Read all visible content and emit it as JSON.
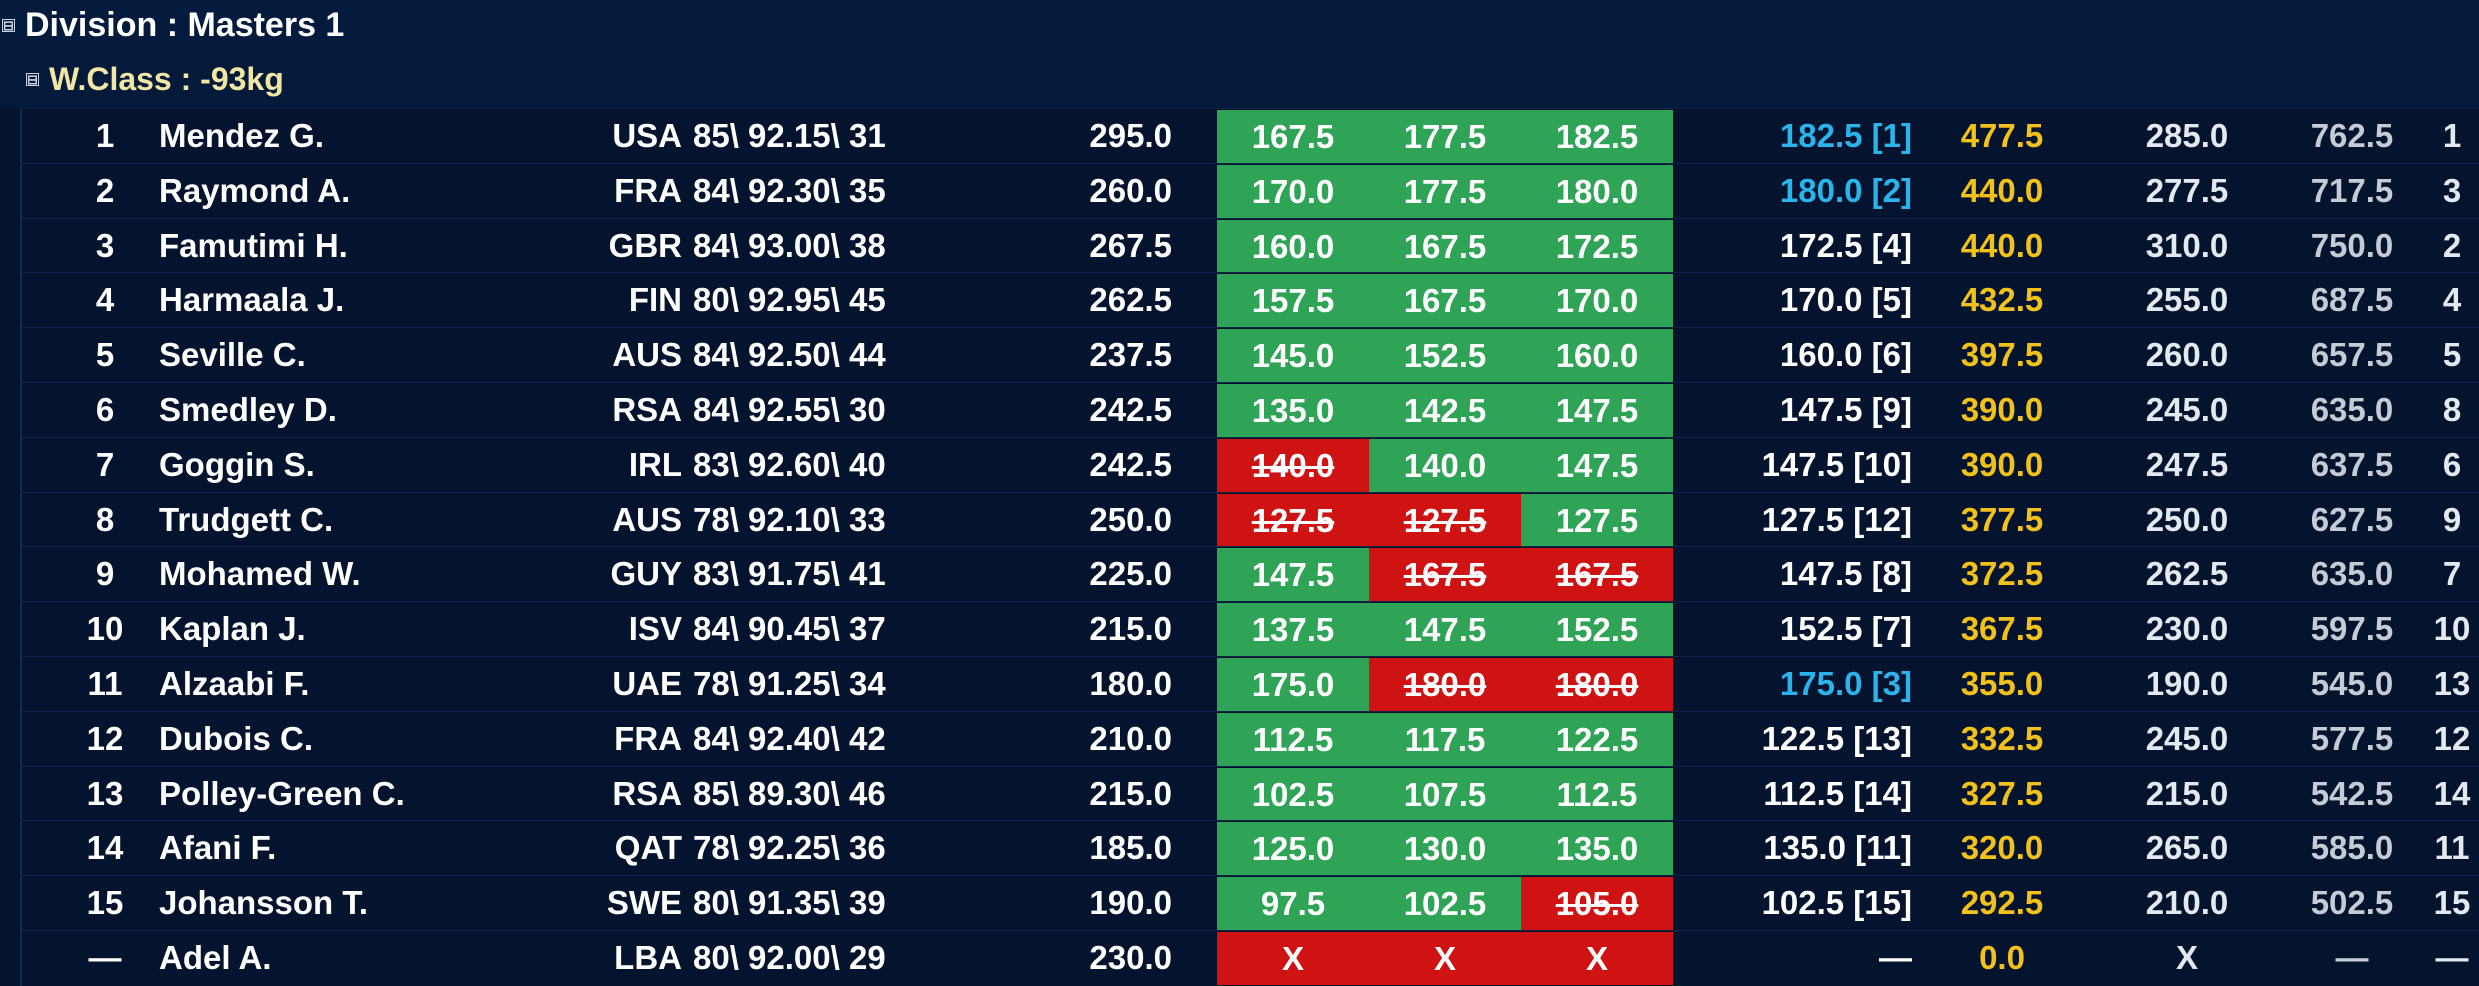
{
  "division": {
    "label": "Division : Masters 1",
    "expander": "⊟"
  },
  "weight_class": {
    "label": "W.Class : -93kg",
    "expander": "⊟"
  },
  "colors": {
    "good": "#2fa356",
    "bad": "#cf1212",
    "total": "#f2c21b",
    "record": "#2bb3ec"
  },
  "rows": [
    {
      "rank": "1",
      "name": "Mendez G.",
      "country": "USA",
      "bw": "85\\ 92.15\\ 31",
      "open": "295.0",
      "attempts": [
        {
          "v": "167.5",
          "s": "good"
        },
        {
          "v": "177.5",
          "s": "good"
        },
        {
          "v": "182.5",
          "s": "good"
        }
      ],
      "best": "182.5 [1]",
      "best_hl": true,
      "total": "477.5",
      "next": "285.0",
      "proj": "762.5",
      "place": "1"
    },
    {
      "rank": "2",
      "name": "Raymond A.",
      "country": "FRA",
      "bw": "84\\ 92.30\\ 35",
      "open": "260.0",
      "attempts": [
        {
          "v": "170.0",
          "s": "good"
        },
        {
          "v": "177.5",
          "s": "good"
        },
        {
          "v": "180.0",
          "s": "good"
        }
      ],
      "best": "180.0 [2]",
      "best_hl": true,
      "total": "440.0",
      "next": "277.5",
      "proj": "717.5",
      "place": "3"
    },
    {
      "rank": "3",
      "name": "Famutimi H.",
      "country": "GBR",
      "bw": "84\\ 93.00\\ 38",
      "open": "267.5",
      "attempts": [
        {
          "v": "160.0",
          "s": "good"
        },
        {
          "v": "167.5",
          "s": "good"
        },
        {
          "v": "172.5",
          "s": "good"
        }
      ],
      "best": "172.5 [4]",
      "best_hl": false,
      "total": "440.0",
      "next": "310.0",
      "proj": "750.0",
      "place": "2"
    },
    {
      "rank": "4",
      "name": "Harmaala J.",
      "country": "FIN",
      "bw": "80\\ 92.95\\ 45",
      "open": "262.5",
      "attempts": [
        {
          "v": "157.5",
          "s": "good"
        },
        {
          "v": "167.5",
          "s": "good"
        },
        {
          "v": "170.0",
          "s": "good"
        }
      ],
      "best": "170.0 [5]",
      "best_hl": false,
      "total": "432.5",
      "next": "255.0",
      "proj": "687.5",
      "place": "4"
    },
    {
      "rank": "5",
      "name": "Seville C.",
      "country": "AUS",
      "bw": "84\\ 92.50\\ 44",
      "open": "237.5",
      "attempts": [
        {
          "v": "145.0",
          "s": "good"
        },
        {
          "v": "152.5",
          "s": "good"
        },
        {
          "v": "160.0",
          "s": "good"
        }
      ],
      "best": "160.0 [6]",
      "best_hl": false,
      "total": "397.5",
      "next": "260.0",
      "proj": "657.5",
      "place": "5"
    },
    {
      "rank": "6",
      "name": "Smedley D.",
      "country": "RSA",
      "bw": "84\\ 92.55\\ 30",
      "open": "242.5",
      "attempts": [
        {
          "v": "135.0",
          "s": "good"
        },
        {
          "v": "142.5",
          "s": "good"
        },
        {
          "v": "147.5",
          "s": "good"
        }
      ],
      "best": "147.5 [9]",
      "best_hl": false,
      "total": "390.0",
      "next": "245.0",
      "proj": "635.0",
      "place": "8"
    },
    {
      "rank": "7",
      "name": "Goggin S.",
      "country": "IRL",
      "bw": "83\\ 92.60\\ 40",
      "open": "242.5",
      "attempts": [
        {
          "v": "140.0",
          "s": "bad"
        },
        {
          "v": "140.0",
          "s": "good"
        },
        {
          "v": "147.5",
          "s": "good"
        }
      ],
      "best": "147.5 [10]",
      "best_hl": false,
      "total": "390.0",
      "next": "247.5",
      "proj": "637.5",
      "place": "6"
    },
    {
      "rank": "8",
      "name": "Trudgett C.",
      "country": "AUS",
      "bw": "78\\ 92.10\\ 33",
      "open": "250.0",
      "attempts": [
        {
          "v": "127.5",
          "s": "bad"
        },
        {
          "v": "127.5",
          "s": "bad"
        },
        {
          "v": "127.5",
          "s": "good"
        }
      ],
      "best": "127.5 [12]",
      "best_hl": false,
      "total": "377.5",
      "next": "250.0",
      "proj": "627.5",
      "place": "9"
    },
    {
      "rank": "9",
      "name": "Mohamed W.",
      "country": "GUY",
      "bw": "83\\ 91.75\\ 41",
      "open": "225.0",
      "attempts": [
        {
          "v": "147.5",
          "s": "good"
        },
        {
          "v": "167.5",
          "s": "bad"
        },
        {
          "v": "167.5",
          "s": "bad"
        }
      ],
      "best": "147.5 [8]",
      "best_hl": false,
      "total": "372.5",
      "next": "262.5",
      "proj": "635.0",
      "place": "7"
    },
    {
      "rank": "10",
      "name": "Kaplan J.",
      "country": "ISV",
      "bw": "84\\ 90.45\\ 37",
      "open": "215.0",
      "attempts": [
        {
          "v": "137.5",
          "s": "good"
        },
        {
          "v": "147.5",
          "s": "good"
        },
        {
          "v": "152.5",
          "s": "good"
        }
      ],
      "best": "152.5 [7]",
      "best_hl": false,
      "total": "367.5",
      "next": "230.0",
      "proj": "597.5",
      "place": "10"
    },
    {
      "rank": "11",
      "name": "Alzaabi F.",
      "country": "UAE",
      "bw": "78\\ 91.25\\ 34",
      "open": "180.0",
      "attempts": [
        {
          "v": "175.0",
          "s": "good"
        },
        {
          "v": "180.0",
          "s": "bad"
        },
        {
          "v": "180.0",
          "s": "bad"
        }
      ],
      "best": "175.0 [3]",
      "best_hl": true,
      "total": "355.0",
      "next": "190.0",
      "proj": "545.0",
      "place": "13"
    },
    {
      "rank": "12",
      "name": "Dubois C.",
      "country": "FRA",
      "bw": "84\\ 92.40\\ 42",
      "open": "210.0",
      "attempts": [
        {
          "v": "112.5",
          "s": "good"
        },
        {
          "v": "117.5",
          "s": "good"
        },
        {
          "v": "122.5",
          "s": "good"
        }
      ],
      "best": "122.5 [13]",
      "best_hl": false,
      "total": "332.5",
      "next": "245.0",
      "proj": "577.5",
      "place": "12"
    },
    {
      "rank": "13",
      "name": "Polley-Green C.",
      "country": "RSA",
      "bw": "85\\ 89.30\\ 46",
      "open": "215.0",
      "attempts": [
        {
          "v": "102.5",
          "s": "good"
        },
        {
          "v": "107.5",
          "s": "good"
        },
        {
          "v": "112.5",
          "s": "good"
        }
      ],
      "best": "112.5 [14]",
      "best_hl": false,
      "total": "327.5",
      "next": "215.0",
      "proj": "542.5",
      "place": "14"
    },
    {
      "rank": "14",
      "name": "Afani F.",
      "country": "QAT",
      "bw": "78\\ 92.25\\ 36",
      "open": "185.0",
      "attempts": [
        {
          "v": "125.0",
          "s": "good"
        },
        {
          "v": "130.0",
          "s": "good"
        },
        {
          "v": "135.0",
          "s": "good"
        }
      ],
      "best": "135.0 [11]",
      "best_hl": false,
      "total": "320.0",
      "next": "265.0",
      "proj": "585.0",
      "place": "11"
    },
    {
      "rank": "15",
      "name": "Johansson T.",
      "country": "SWE",
      "bw": "80\\ 91.35\\ 39",
      "open": "190.0",
      "attempts": [
        {
          "v": "97.5",
          "s": "good"
        },
        {
          "v": "102.5",
          "s": "good"
        },
        {
          "v": "105.0",
          "s": "bad"
        }
      ],
      "best": "102.5 [15]",
      "best_hl": false,
      "total": "292.5",
      "next": "210.0",
      "proj": "502.5",
      "place": "15"
    },
    {
      "rank": "—",
      "name": "Adel A.",
      "country": "LBA",
      "bw": "80\\ 92.00\\ 29",
      "open": "230.0",
      "attempts": [
        {
          "v": "X",
          "s": "bad",
          "nostrike": true
        },
        {
          "v": "X",
          "s": "bad",
          "nostrike": true
        },
        {
          "v": "X",
          "s": "bad",
          "nostrike": true
        }
      ],
      "best": "—",
      "best_hl": false,
      "total": "0.0",
      "next": "X",
      "proj": "—",
      "place": "—"
    }
  ]
}
